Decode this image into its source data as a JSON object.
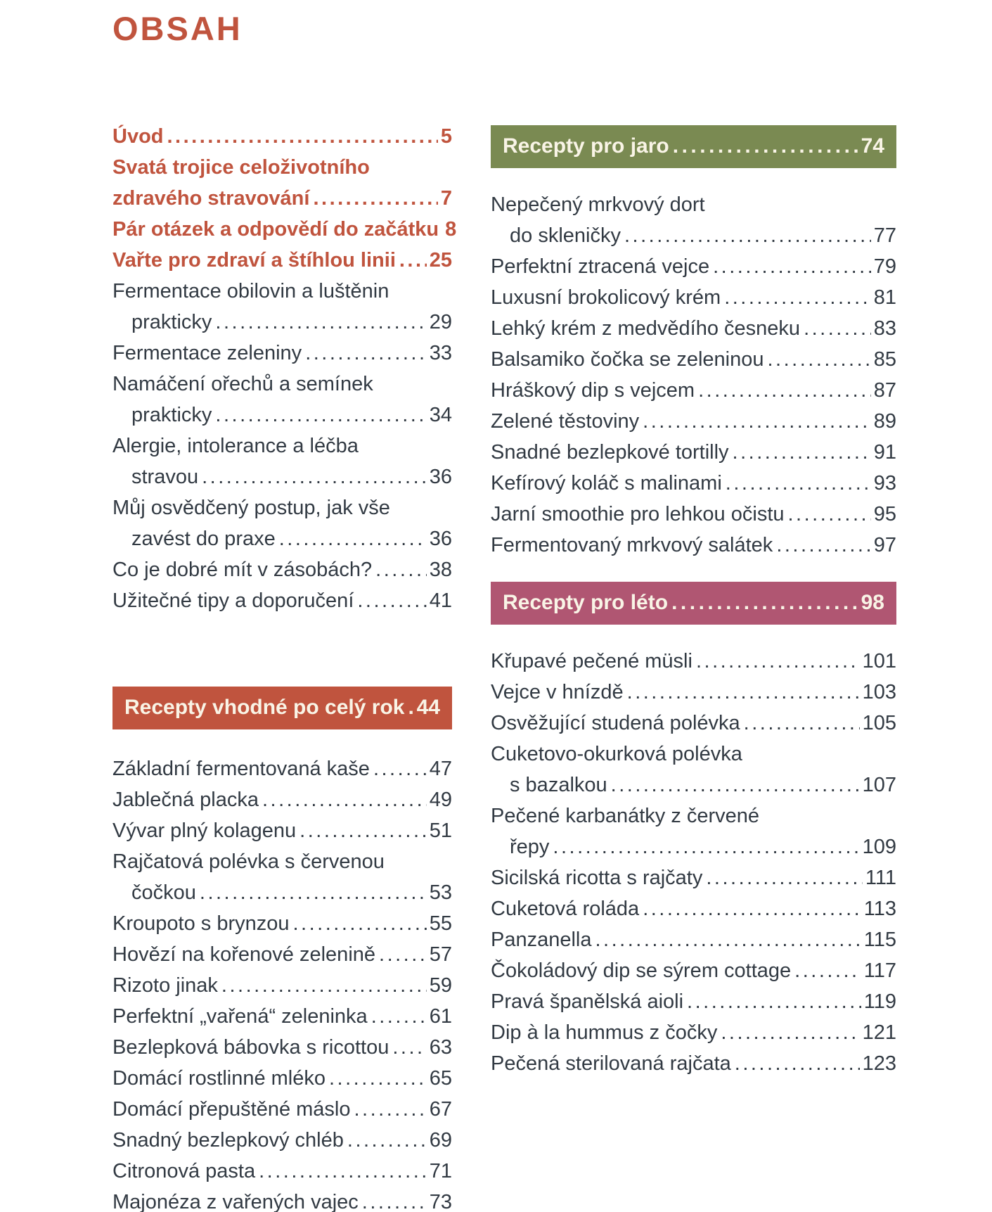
{
  "page": {
    "title": "OBSAH"
  },
  "colors": {
    "background": "#ffffff",
    "body_text": "#323a43",
    "accent": "#c0543e",
    "banner_text": "#f9f4e6",
    "banner_year_round_bg": "#c0543e",
    "banner_spring_bg": "#7a8a52",
    "banner_summer_bg": "#b05672"
  },
  "left_column": {
    "intro_items": [
      {
        "accent": true,
        "lines": [
          {
            "text": "Úvod",
            "page": "5"
          }
        ]
      },
      {
        "accent": true,
        "lines": [
          {
            "text": "Svatá trojice celoživotního"
          },
          {
            "text": "zdravého stravování",
            "page": "7"
          }
        ]
      },
      {
        "accent": true,
        "lines": [
          {
            "text": "Pár otázek a odpovědí do začátku",
            "page": "8"
          }
        ]
      },
      {
        "accent": true,
        "lines": [
          {
            "text": "Vařte pro zdraví a štíhlou linii",
            "page": "25"
          }
        ]
      },
      {
        "lines": [
          {
            "text": "Fermentace obilovin a luštěnin"
          },
          {
            "text": "prakticky",
            "page": "29",
            "indent": true
          }
        ]
      },
      {
        "lines": [
          {
            "text": "Fermentace zeleniny",
            "page": "33"
          }
        ]
      },
      {
        "lines": [
          {
            "text": "Namáčení ořechů a semínek"
          },
          {
            "text": "prakticky",
            "page": "34",
            "indent": true
          }
        ]
      },
      {
        "lines": [
          {
            "text": "Alergie, intolerance a léčba"
          },
          {
            "text": "stravou",
            "page": "36",
            "indent": true
          }
        ]
      },
      {
        "lines": [
          {
            "text": "Můj osvědčený postup, jak vše"
          },
          {
            "text": "zavést do praxe",
            "page": "36",
            "indent": true
          }
        ]
      },
      {
        "lines": [
          {
            "text": "Co je dobré mít v zásobách?",
            "page": "38"
          }
        ]
      },
      {
        "lines": [
          {
            "text": "Užitečné tipy a doporučení",
            "page": "41"
          }
        ]
      }
    ],
    "year_round": {
      "banner": {
        "label": "Recepty vhodné po celý rok",
        "page": "44"
      },
      "items": [
        {
          "lines": [
            {
              "text": "Základní fermentovaná kaše",
              "page": "47"
            }
          ]
        },
        {
          "lines": [
            {
              "text": "Jablečná placka",
              "page": "49"
            }
          ]
        },
        {
          "lines": [
            {
              "text": "Vývar plný kolagenu",
              "page": "51"
            }
          ]
        },
        {
          "lines": [
            {
              "text": "Rajčatová polévka s červenou"
            },
            {
              "text": "čočkou",
              "page": "53",
              "indent": true
            }
          ]
        },
        {
          "lines": [
            {
              "text": "Kroupoto s brynzou",
              "page": "55"
            }
          ]
        },
        {
          "lines": [
            {
              "text": "Hovězí na kořenové zelenině",
              "page": "57"
            }
          ]
        },
        {
          "lines": [
            {
              "text": "Rizoto jinak",
              "page": "59"
            }
          ]
        },
        {
          "lines": [
            {
              "text": "Perfektní „vařená“ zeleninka",
              "page": "61"
            }
          ]
        },
        {
          "lines": [
            {
              "text": "Bezlepková bábovka s ricottou",
              "page": "63"
            }
          ]
        },
        {
          "lines": [
            {
              "text": "Domácí rostlinné mléko",
              "page": "65"
            }
          ]
        },
        {
          "lines": [
            {
              "text": "Domácí přepuštěné máslo",
              "page": "67"
            }
          ]
        },
        {
          "lines": [
            {
              "text": "Snadný bezlepkový chléb",
              "page": "69"
            }
          ]
        },
        {
          "lines": [
            {
              "text": "Citronová pasta",
              "page": "71"
            }
          ]
        },
        {
          "lines": [
            {
              "text": "Majonéza z vařených vajec",
              "page": "73"
            }
          ]
        }
      ]
    }
  },
  "right_column": {
    "spring": {
      "banner": {
        "label": "Recepty pro jaro",
        "page": "74"
      },
      "items": [
        {
          "lines": [
            {
              "text": "Nepečený mrkvový dort"
            },
            {
              "text": "do skleničky",
              "page": "77",
              "indent": true
            }
          ]
        },
        {
          "lines": [
            {
              "text": "Perfektní ztracená vejce",
              "page": "79"
            }
          ]
        },
        {
          "lines": [
            {
              "text": "Luxusní brokolicový krém",
              "page": "81"
            }
          ]
        },
        {
          "lines": [
            {
              "text": "Lehký krém z medvědího česneku",
              "page": "83"
            }
          ]
        },
        {
          "lines": [
            {
              "text": "Balsamiko čočka se zeleninou",
              "page": "85"
            }
          ]
        },
        {
          "lines": [
            {
              "text": "Hráškový dip s vejcem",
              "page": "87"
            }
          ]
        },
        {
          "lines": [
            {
              "text": "Zelené těstoviny",
              "page": "89"
            }
          ]
        },
        {
          "lines": [
            {
              "text": "Snadné bezlepkové tortilly",
              "page": "91"
            }
          ]
        },
        {
          "lines": [
            {
              "text": "Kefírový koláč s malinami",
              "page": "93"
            }
          ]
        },
        {
          "lines": [
            {
              "text": "Jarní smoothie pro lehkou očistu",
              "page": "95"
            }
          ]
        },
        {
          "lines": [
            {
              "text": "Fermentovaný mrkvový salátek",
              "page": "97"
            }
          ]
        }
      ]
    },
    "summer": {
      "banner": {
        "label": "Recepty pro léto",
        "page": "98"
      },
      "items": [
        {
          "lines": [
            {
              "text": "Křupavé pečené müsli",
              "page": "101"
            }
          ]
        },
        {
          "lines": [
            {
              "text": "Vejce v hnízdě",
              "page": "103"
            }
          ]
        },
        {
          "lines": [
            {
              "text": "Osvěžující studená polévka",
              "page": "105"
            }
          ]
        },
        {
          "lines": [
            {
              "text": "Cuketovo-okurková polévka"
            },
            {
              "text": "s bazalkou",
              "page": "107",
              "indent": true
            }
          ]
        },
        {
          "lines": [
            {
              "text": "Pečené karbanátky z červené"
            },
            {
              "text": "řepy",
              "page": "109",
              "indent": true
            }
          ]
        },
        {
          "lines": [
            {
              "text": "Sicilská ricotta s rajčaty",
              "page": "111"
            }
          ]
        },
        {
          "lines": [
            {
              "text": "Cuketová roláda",
              "page": "113"
            }
          ]
        },
        {
          "lines": [
            {
              "text": "Panzanella",
              "page": "115"
            }
          ]
        },
        {
          "lines": [
            {
              "text": "Čokoládový dip se sýrem cottage",
              "page": "117"
            }
          ]
        },
        {
          "lines": [
            {
              "text": "Pravá španělská aioli",
              "page": "119"
            }
          ]
        },
        {
          "lines": [
            {
              "text": "Dip à la hummus z čočky",
              "page": "121"
            }
          ]
        },
        {
          "lines": [
            {
              "text": "Pečená sterilovaná rajčata",
              "page": "123"
            }
          ]
        }
      ]
    }
  }
}
